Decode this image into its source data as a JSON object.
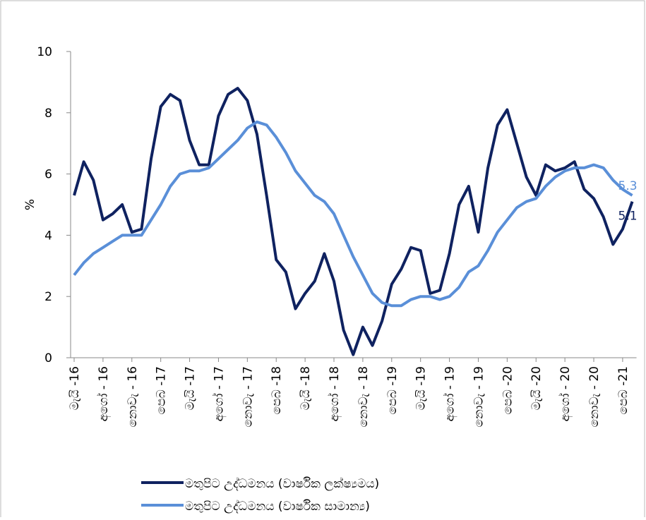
{
  "chart_data": {
    "type": "line",
    "y_label": "%",
    "categories": [
      "මැයි -16",
      null,
      null,
      "අගෝ - 16",
      null,
      null,
      "නොවැ - 16",
      null,
      null,
      "පෙබ -17",
      null,
      null,
      "මැයි -17",
      null,
      null,
      "අගෝ - 17",
      null,
      null,
      "නොවැ - 17",
      null,
      null,
      "පෙබ -18",
      null,
      null,
      "මැයි -18",
      null,
      null,
      "අගෝ - 18",
      null,
      null,
      "නොවැ - 18",
      null,
      null,
      "පෙබ -19",
      null,
      null,
      "මැයි -19",
      null,
      null,
      "අගෝ - 19",
      null,
      null,
      "නොවැ - 19",
      null,
      null,
      "පෙබ -20",
      null,
      null,
      "මැයි -20",
      null,
      null,
      "අගෝ - 20",
      null,
      null,
      "නොවැ - 20",
      null,
      null,
      "පෙබ -21",
      null
    ],
    "series": [
      {
        "name": "මතුපිට උද්ධමනය (වාර්ෂික ලක්ෂ්‍යමය)",
        "color": "#0f2260",
        "values": [
          5.3,
          6.4,
          5.8,
          4.5,
          4.7,
          5.0,
          4.1,
          4.2,
          6.5,
          8.2,
          8.6,
          8.4,
          7.1,
          6.3,
          6.3,
          7.9,
          8.6,
          8.8,
          8.4,
          7.3,
          5.3,
          3.2,
          2.8,
          1.6,
          2.1,
          2.5,
          3.4,
          2.5,
          0.9,
          0.1,
          1.0,
          0.4,
          1.2,
          2.4,
          2.9,
          3.6,
          3.5,
          2.1,
          2.2,
          3.4,
          5.0,
          5.6,
          4.1,
          6.2,
          7.6,
          8.1,
          7.0,
          5.9,
          5.3,
          6.3,
          6.1,
          6.2,
          6.4,
          5.5,
          5.2,
          4.6,
          3.7,
          4.2,
          5.1
        ]
      },
      {
        "name": "මතුපිට උද්ධමනය (වාර්ෂික සාමාන්‍ය)",
        "color": "#5a8fd8",
        "values": [
          2.7,
          3.1,
          3.4,
          3.6,
          3.8,
          4.0,
          4.0,
          4.0,
          4.5,
          5.0,
          5.6,
          6.0,
          6.1,
          6.1,
          6.2,
          6.5,
          6.8,
          7.1,
          7.5,
          7.7,
          7.6,
          7.2,
          6.7,
          6.1,
          5.7,
          5.3,
          5.1,
          4.7,
          4.0,
          3.3,
          2.7,
          2.1,
          1.8,
          1.7,
          1.7,
          1.9,
          2.0,
          2.0,
          1.9,
          2.0,
          2.3,
          2.8,
          3.0,
          3.5,
          4.1,
          4.5,
          4.9,
          5.1,
          5.2,
          5.6,
          5.9,
          6.1,
          6.2,
          6.2,
          6.3,
          6.2,
          5.8,
          5.5,
          5.3
        ]
      }
    ],
    "ylim": [
      0,
      10
    ],
    "yticks": [
      0,
      2,
      4,
      6,
      8,
      10
    ],
    "legend": "bottom"
  }
}
